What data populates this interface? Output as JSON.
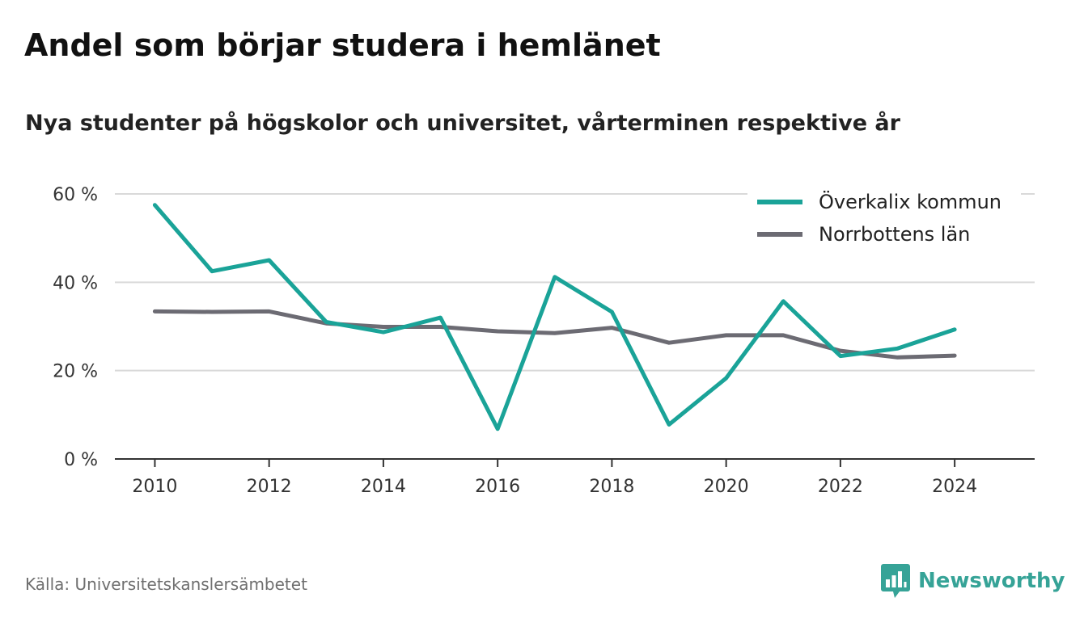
{
  "header": {
    "title": "Andel som börjar studera i hemlänet",
    "subtitle": "Nya studenter på högskolor och universitet, vårterminen respektive år"
  },
  "footer": {
    "source": "Källa: Universitetskanslersämbetet",
    "brand": "Newsworthy",
    "brand_icon": "bar-chart-logo-icon"
  },
  "colors": {
    "series_1": "#1aa398",
    "series_2": "#6c6b73",
    "grid": "#d9d9d9",
    "axis": "#333333",
    "brand": "#36a397"
  },
  "chart_data": {
    "type": "line",
    "title": "Andel som börjar studera i hemlänet",
    "subtitle": "Nya studenter på högskolor och universitet, vårterminen respektive år",
    "x": [
      2010,
      2011,
      2012,
      2013,
      2014,
      2015,
      2016,
      2017,
      2018,
      2019,
      2020,
      2021,
      2022,
      2023,
      2024
    ],
    "series": [
      {
        "name": "Överkalix kommun",
        "color": "#1aa398",
        "values": [
          57.5,
          42.5,
          45.0,
          31.0,
          28.7,
          32.0,
          6.8,
          41.2,
          33.3,
          7.8,
          18.3,
          35.7,
          23.3,
          25.0,
          29.3
        ]
      },
      {
        "name": "Norrbottens län",
        "color": "#6c6b73",
        "values": [
          33.4,
          33.3,
          33.4,
          30.7,
          29.9,
          29.9,
          28.9,
          28.5,
          29.7,
          26.3,
          28.0,
          28.0,
          24.5,
          23.0,
          23.4
        ]
      }
    ],
    "xlim": [
      2009.3,
      2025.4
    ],
    "ylim": [
      0,
      60
    ],
    "x_ticks": [
      2010,
      2012,
      2014,
      2016,
      2018,
      2020,
      2022,
      2024
    ],
    "x_tick_labels": [
      "2010",
      "2012",
      "2014",
      "2016",
      "2018",
      "2020",
      "2022",
      "2024"
    ],
    "y_ticks": [
      0,
      20,
      40,
      60
    ],
    "y_tick_labels": [
      "0 %",
      "20 %",
      "40 %",
      "60 %"
    ],
    "grid": true,
    "legend_position": "top-right"
  }
}
